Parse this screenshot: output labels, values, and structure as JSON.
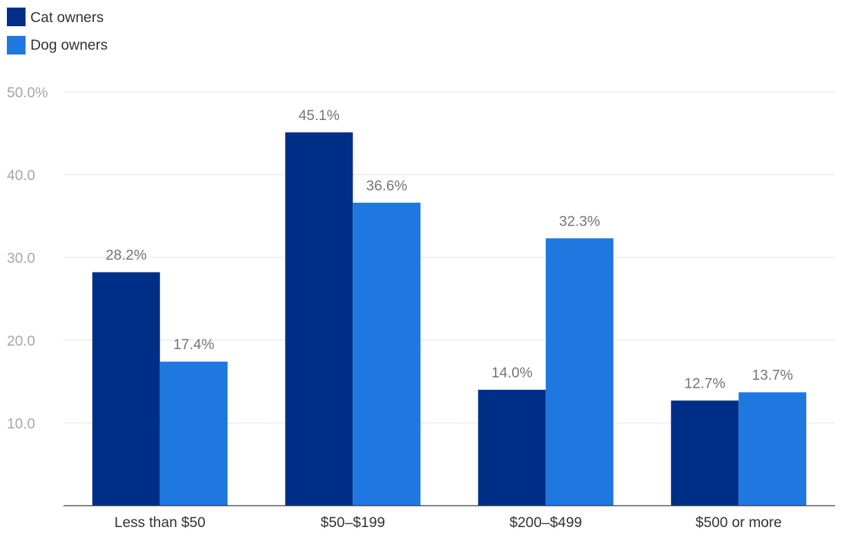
{
  "chart_data": {
    "type": "bar",
    "title": "",
    "xlabel": "",
    "ylabel": "",
    "categories": [
      "Less than $50",
      "$50–$199",
      "$200–$499",
      "$500 or more"
    ],
    "series": [
      {
        "name": "Cat owners",
        "color": "#002f87",
        "values": [
          28.2,
          45.1,
          14.0,
          12.7
        ],
        "labels": [
          "28.2%",
          "45.1%",
          "14.0%",
          "12.7%"
        ]
      },
      {
        "name": "Dog owners",
        "color": "#1f78e0",
        "values": [
          17.4,
          36.6,
          32.3,
          13.7
        ],
        "labels": [
          "17.4%",
          "36.6%",
          "32.3%",
          "13.7%"
        ]
      }
    ],
    "ylim": [
      0,
      50
    ],
    "yticks": [
      10,
      20,
      30,
      40,
      50
    ],
    "ytick_labels": [
      "10.0",
      "20.0",
      "30.0",
      "40.0",
      "50.0%"
    ],
    "grid": true,
    "legend_position": "top-left"
  }
}
